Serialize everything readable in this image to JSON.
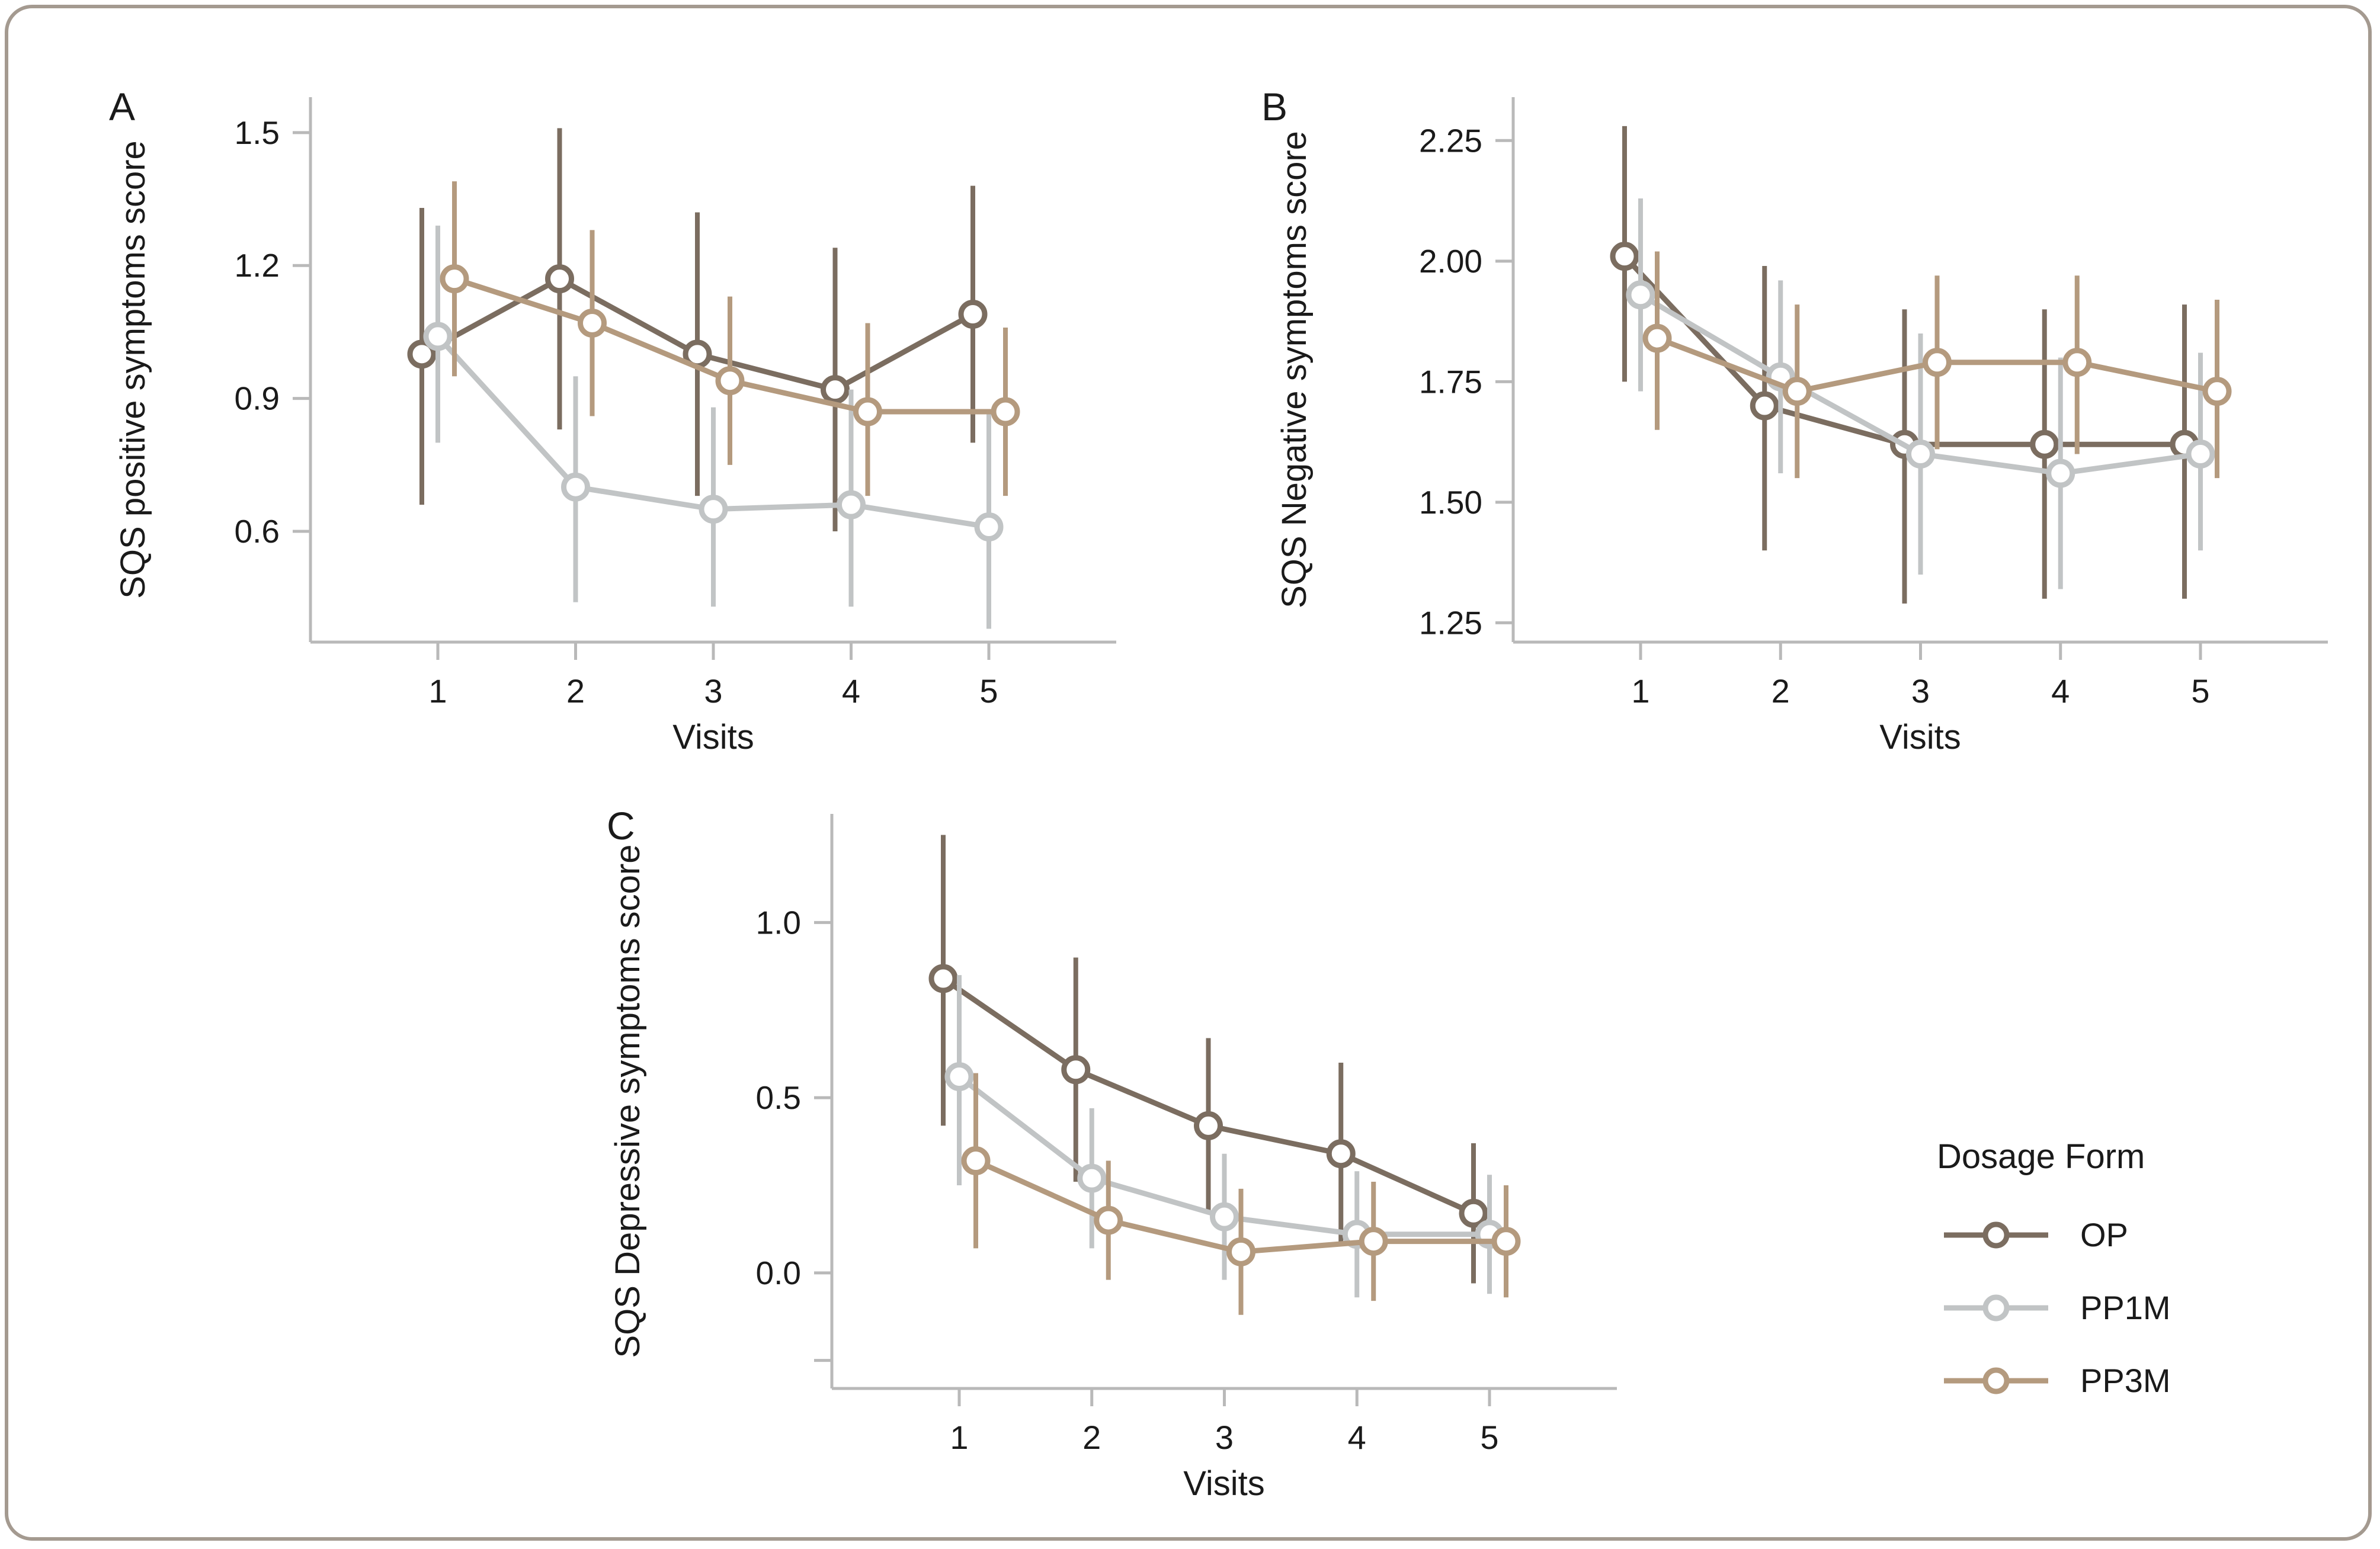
{
  "legend": {
    "title": "Dosage Form",
    "items": [
      {
        "label": "OP",
        "color": "#7b6d60"
      },
      {
        "label": "PP1M",
        "color": "#c1c4c5"
      },
      {
        "label": "PP3M",
        "color": "#b49a7e"
      }
    ]
  },
  "chart_data": [
    {
      "type": "line",
      "panel_label": "A",
      "ylabel": "SQS positive symptoms score",
      "xlabel": "Visits",
      "x": [
        1,
        2,
        3,
        4,
        5
      ],
      "x_tick_labels": [
        "1",
        "2",
        "3",
        "4",
        "5"
      ],
      "ylim": [
        0.35,
        1.58
      ],
      "yticks": [
        {
          "value": 1.5,
          "label": "1.5"
        },
        {
          "value": 1.2,
          "label": "1.2"
        },
        {
          "value": 0.9,
          "label": "0.9"
        },
        {
          "value": 0.6,
          "label": "0.6"
        }
      ],
      "grid": false,
      "error_bars": true,
      "legend_position": "none",
      "series": [
        {
          "name": "OP",
          "color": "#7b6d60",
          "values": [
            1.0,
            1.17,
            1.0,
            0.92,
            1.09
          ],
          "ci_low": [
            0.66,
            0.83,
            0.68,
            0.6,
            0.8
          ],
          "ci_high": [
            1.33,
            1.51,
            1.32,
            1.24,
            1.38
          ]
        },
        {
          "name": "PP1M",
          "color": "#c1c4c5",
          "values": [
            1.04,
            0.7,
            0.65,
            0.66,
            0.61
          ],
          "ci_low": [
            0.8,
            0.44,
            0.43,
            0.43,
            0.38
          ],
          "ci_high": [
            1.29,
            0.95,
            0.88,
            0.92,
            0.87
          ]
        },
        {
          "name": "PP3M",
          "color": "#b49a7e",
          "values": [
            1.17,
            1.07,
            0.94,
            0.87,
            0.87
          ],
          "ci_low": [
            0.95,
            0.86,
            0.75,
            0.68,
            0.68
          ],
          "ci_high": [
            1.39,
            1.28,
            1.13,
            1.07,
            1.06
          ]
        }
      ]
    },
    {
      "type": "line",
      "panel_label": "B",
      "ylabel": "SQS Negative symptoms score",
      "xlabel": "Visits",
      "x": [
        1,
        2,
        3,
        4,
        5
      ],
      "x_tick_labels": [
        "1",
        "2",
        "3",
        "4",
        "5"
      ],
      "ylim": [
        1.21,
        2.34
      ],
      "yticks": [
        {
          "value": 2.25,
          "label": "2.25"
        },
        {
          "value": 2.0,
          "label": "2.00"
        },
        {
          "value": 1.75,
          "label": "1.75"
        },
        {
          "value": 1.5,
          "label": "1.50"
        },
        {
          "value": 1.25,
          "label": "1.25"
        }
      ],
      "grid": false,
      "error_bars": true,
      "legend_position": "none",
      "series": [
        {
          "name": "OP",
          "color": "#7b6d60",
          "values": [
            2.01,
            1.7,
            1.62,
            1.62,
            1.62
          ],
          "ci_low": [
            1.75,
            1.4,
            1.29,
            1.3,
            1.3
          ],
          "ci_high": [
            2.28,
            1.99,
            1.9,
            1.9,
            1.91
          ]
        },
        {
          "name": "PP1M",
          "color": "#c1c4c5",
          "values": [
            1.93,
            1.76,
            1.6,
            1.56,
            1.6
          ],
          "ci_low": [
            1.73,
            1.56,
            1.35,
            1.32,
            1.4
          ],
          "ci_high": [
            2.13,
            1.96,
            1.85,
            1.8,
            1.81
          ]
        },
        {
          "name": "PP3M",
          "color": "#b49a7e",
          "values": [
            1.84,
            1.73,
            1.79,
            1.79,
            1.73
          ],
          "ci_low": [
            1.65,
            1.55,
            1.61,
            1.6,
            1.55
          ],
          "ci_high": [
            2.02,
            1.91,
            1.97,
            1.97,
            1.92
          ]
        }
      ]
    },
    {
      "type": "line",
      "panel_label": "C",
      "ylabel": "SQS Depressive symptoms score",
      "xlabel": "Visits",
      "x": [
        1,
        2,
        3,
        4,
        5
      ],
      "x_tick_labels": [
        "1",
        "2",
        "3",
        "4",
        "5"
      ],
      "ylim": [
        -0.33,
        1.31
      ],
      "yticks": [
        {
          "value": 1.0,
          "label": "1.0"
        },
        {
          "value": 0.5,
          "label": "0.5"
        },
        {
          "value": 0.0,
          "label": "0.0"
        },
        {
          "value": -0.25,
          "label": ""
        }
      ],
      "grid": false,
      "error_bars": true,
      "legend_position": "none",
      "series": [
        {
          "name": "OP",
          "color": "#7b6d60",
          "values": [
            0.84,
            0.58,
            0.42,
            0.34,
            0.17
          ],
          "ci_low": [
            0.42,
            0.26,
            0.17,
            0.08,
            -0.03
          ],
          "ci_high": [
            1.25,
            0.9,
            0.67,
            0.6,
            0.37
          ]
        },
        {
          "name": "PP1M",
          "color": "#c1c4c5",
          "values": [
            0.56,
            0.27,
            0.16,
            0.11,
            0.11
          ],
          "ci_low": [
            0.25,
            0.07,
            -0.02,
            -0.07,
            -0.06
          ],
          "ci_high": [
            0.85,
            0.47,
            0.34,
            0.29,
            0.28
          ]
        },
        {
          "name": "PP3M",
          "color": "#b49a7e",
          "values": [
            0.32,
            0.15,
            0.06,
            0.09,
            0.09
          ],
          "ci_low": [
            0.07,
            -0.02,
            -0.12,
            -0.08,
            -0.07
          ],
          "ci_high": [
            0.57,
            0.32,
            0.24,
            0.26,
            0.25
          ]
        }
      ]
    }
  ]
}
